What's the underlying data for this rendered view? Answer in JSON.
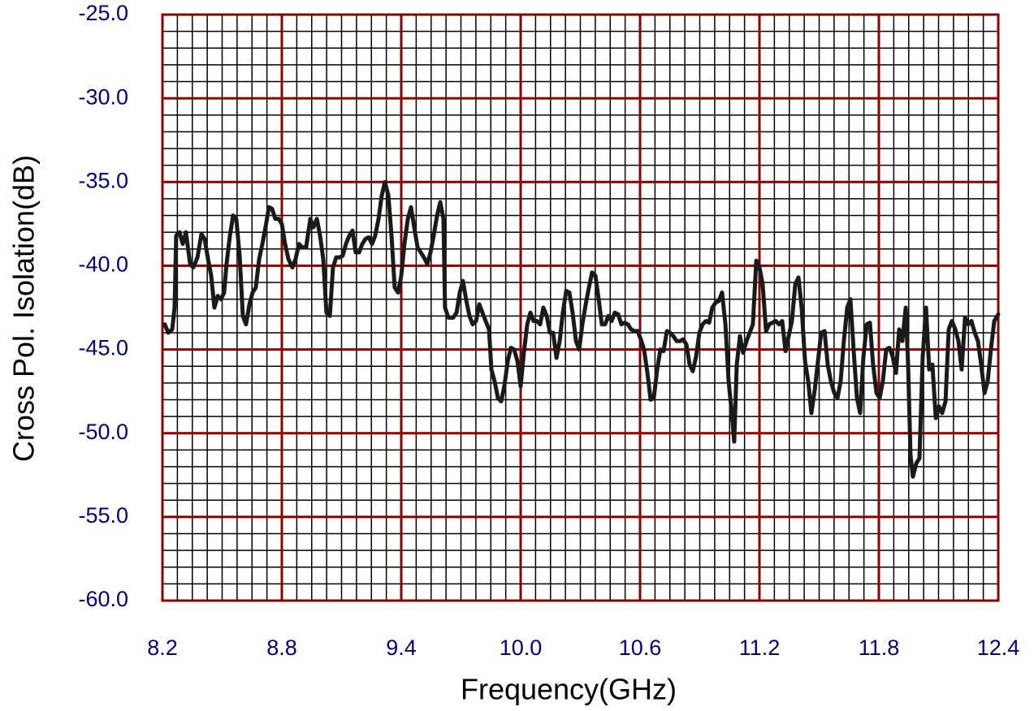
{
  "chart_data": {
    "type": "line",
    "xlabel": "Frequency(GHz)",
    "ylabel": "Cross Pol. Isolation(dB)",
    "xlim": [
      8.2,
      12.4
    ],
    "xticks": [
      8.2,
      8.8,
      9.4,
      {
        "value": 10,
        "label": "10.0"
      },
      10.6,
      11.2,
      11.8,
      12.4
    ],
    "ylim": [
      -60,
      -25
    ],
    "yticks": [
      {
        "value": -60,
        "label": "-60.0"
      },
      {
        "value": -55,
        "label": "-55.0"
      },
      {
        "value": -50,
        "label": "-50.0"
      },
      {
        "value": -45,
        "label": "-45.0"
      },
      {
        "value": -40,
        "label": "-40.0"
      },
      {
        "value": -35,
        "label": "-35.0"
      },
      {
        "value": -30,
        "label": "-30.0"
      },
      {
        "value": -25,
        "label": "-25.0"
      }
    ],
    "grid": true,
    "grid_color": "#8b0000",
    "minor_grid_color": "#000000",
    "minor_divisions": {
      "x": 8,
      "y": 5
    },
    "color": "#1a1a1a",
    "x": [
      8.212,
      8.229,
      8.249,
      8.261,
      8.269,
      8.286,
      8.302,
      8.318,
      8.339,
      8.355,
      8.376,
      8.396,
      8.412,
      8.429,
      8.445,
      8.461,
      8.478,
      8.494,
      8.51,
      8.522,
      8.539,
      8.555,
      8.571,
      8.588,
      8.604,
      8.62,
      8.637,
      8.653,
      8.669,
      8.686,
      8.702,
      8.718,
      8.735,
      8.751,
      8.767,
      8.784,
      8.8,
      8.816,
      8.833,
      8.853,
      8.869,
      8.886,
      8.902,
      8.922,
      8.943,
      8.959,
      8.976,
      8.992,
      9.008,
      9.024,
      9.041,
      9.057,
      9.073,
      9.09,
      9.106,
      9.122,
      9.139,
      9.155,
      9.171,
      9.188,
      9.204,
      9.22,
      9.237,
      9.253,
      9.269,
      9.286,
      9.302,
      9.318,
      9.335,
      9.351,
      9.367,
      9.384,
      9.4,
      9.416,
      9.433,
      9.449,
      9.465,
      9.482,
      9.498,
      9.514,
      9.531,
      9.547,
      9.563,
      9.58,
      9.596,
      9.612,
      9.62,
      9.637,
      9.661,
      9.678,
      9.694,
      9.71,
      9.727,
      9.743,
      9.759,
      9.776,
      9.792,
      9.808,
      9.824,
      9.841,
      9.853,
      9.869,
      9.886,
      9.902,
      9.918,
      9.935,
      9.951,
      9.967,
      9.984,
      10.0,
      10.016,
      10.033,
      10.049,
      10.065,
      10.082,
      10.098,
      10.114,
      10.131,
      10.147,
      10.163,
      10.18,
      10.196,
      10.212,
      10.229,
      10.245,
      10.261,
      10.278,
      10.294,
      10.31,
      10.327,
      10.343,
      10.359,
      10.376,
      10.392,
      10.408,
      10.424,
      10.441,
      10.457,
      10.473,
      10.49,
      10.506,
      10.522,
      10.539,
      10.555,
      10.571,
      10.588,
      10.604,
      10.62,
      10.637,
      10.653,
      10.669,
      10.686,
      10.702,
      10.718,
      10.735,
      10.751,
      10.767,
      10.784,
      10.8,
      10.816,
      10.833,
      10.849,
      10.865,
      10.882,
      10.898,
      10.914,
      10.931,
      10.947,
      10.963,
      10.98,
      10.996,
      11.012,
      11.029,
      11.045,
      11.061,
      11.073,
      11.086,
      11.102,
      11.118,
      11.135,
      11.151,
      11.167,
      11.184,
      11.2,
      11.216,
      11.233,
      11.249,
      11.265,
      11.282,
      11.298,
      11.314,
      11.331,
      11.347,
      11.363,
      11.38,
      11.396,
      11.412,
      11.429,
      11.445,
      11.461,
      11.478,
      11.494,
      11.51,
      11.527,
      11.543,
      11.559,
      11.576,
      11.592,
      11.608,
      11.624,
      11.641,
      11.657,
      11.673,
      11.69,
      11.706,
      11.722,
      11.739,
      11.755,
      11.771,
      11.788,
      11.804,
      11.82,
      11.837,
      11.853,
      11.869,
      11.886,
      11.902,
      11.918,
      11.935,
      11.947,
      11.959,
      11.971,
      11.988,
      12.004,
      12.02,
      12.037,
      12.053,
      12.069,
      12.086,
      12.102,
      12.118,
      12.135,
      12.151,
      12.167,
      12.184,
      12.2,
      12.216,
      12.233,
      12.249,
      12.265,
      12.282,
      12.298,
      12.314,
      12.331,
      12.347,
      12.363,
      12.38,
      12.4
    ],
    "values": [
      -43.5,
      -44.0,
      -43.8,
      -42.5,
      -38.2,
      -38.0,
      -38.7,
      -38.0,
      -39.9,
      -40.1,
      -39.5,
      -38.1,
      -38.4,
      -39.6,
      -40.6,
      -42.5,
      -41.8,
      -42.0,
      -41.6,
      -39.9,
      -38.2,
      -37.0,
      -37.2,
      -39.4,
      -43.0,
      -43.5,
      -42.3,
      -41.6,
      -41.3,
      -39.6,
      -38.7,
      -37.7,
      -36.5,
      -36.6,
      -37.2,
      -37.2,
      -37.5,
      -38.7,
      -39.6,
      -40.1,
      -39.6,
      -38.7,
      -38.9,
      -38.9,
      -37.2,
      -37.7,
      -37.2,
      -38.2,
      -39.6,
      -42.8,
      -43.0,
      -40.1,
      -39.5,
      -39.5,
      -39.4,
      -38.7,
      -38.2,
      -37.9,
      -39.2,
      -39.2,
      -38.7,
      -38.4,
      -38.3,
      -38.7,
      -38.2,
      -37.2,
      -35.8,
      -35.0,
      -35.8,
      -38.2,
      -41.3,
      -41.6,
      -40.6,
      -38.7,
      -37.2,
      -36.5,
      -37.7,
      -38.9,
      -39.2,
      -39.5,
      -39.9,
      -39.2,
      -38.2,
      -37.0,
      -36.2,
      -37.2,
      -42.5,
      -43.1,
      -43.1,
      -42.8,
      -41.6,
      -40.9,
      -42.1,
      -43.0,
      -43.5,
      -43.3,
      -42.3,
      -42.8,
      -43.3,
      -43.8,
      -46.2,
      -46.9,
      -47.9,
      -48.1,
      -47.2,
      -45.7,
      -44.9,
      -45.0,
      -45.7,
      -47.2,
      -45.2,
      -43.5,
      -42.8,
      -43.3,
      -43.3,
      -43.5,
      -42.5,
      -43.0,
      -44.0,
      -44.0,
      -45.5,
      -44.5,
      -42.8,
      -41.5,
      -41.6,
      -42.8,
      -44.5,
      -45.0,
      -43.5,
      -42.3,
      -41.3,
      -40.4,
      -40.6,
      -42.0,
      -43.5,
      -43.5,
      -43.0,
      -43.3,
      -42.8,
      -42.9,
      -43.5,
      -43.4,
      -43.5,
      -43.8,
      -43.9,
      -43.9,
      -44.4,
      -45.0,
      -46.4,
      -48.0,
      -47.9,
      -46.2,
      -45.0,
      -45.1,
      -43.9,
      -44.0,
      -44.2,
      -44.5,
      -44.5,
      -44.4,
      -44.7,
      -45.9,
      -46.3,
      -45.4,
      -44.0,
      -43.5,
      -43.3,
      -43.4,
      -42.5,
      -42.2,
      -42.1,
      -41.6,
      -43.5,
      -46.9,
      -48.8,
      -50.5,
      -45.9,
      -44.2,
      -45.2,
      -44.5,
      -44.0,
      -43.5,
      -39.7,
      -40.1,
      -41.1,
      -43.9,
      -43.5,
      -43.4,
      -43.3,
      -43.5,
      -43.3,
      -45.1,
      -44.2,
      -43.3,
      -41.1,
      -40.7,
      -42.5,
      -45.7,
      -46.9,
      -48.8,
      -47.4,
      -45.7,
      -44.0,
      -43.9,
      -45.9,
      -46.9,
      -47.6,
      -47.9,
      -46.9,
      -44.5,
      -42.5,
      -42.0,
      -45.0,
      -47.9,
      -48.8,
      -45.5,
      -43.5,
      -43.4,
      -45.9,
      -47.6,
      -47.9,
      -46.9,
      -45.0,
      -44.9,
      -45.4,
      -46.4,
      -43.8,
      -44.5,
      -42.5,
      -45.9,
      -51.3,
      -52.6,
      -51.8,
      -51.5,
      -45.5,
      -42.5,
      -46.2,
      -45.9,
      -49.1,
      -48.4,
      -48.8,
      -48.1,
      -43.8,
      -43.3,
      -43.8,
      -44.5,
      -46.2,
      -43.1,
      -43.5,
      -43.3,
      -44.0,
      -44.5,
      -45.9,
      -47.6,
      -46.9,
      -45.0,
      -43.3,
      -42.9
    ]
  }
}
